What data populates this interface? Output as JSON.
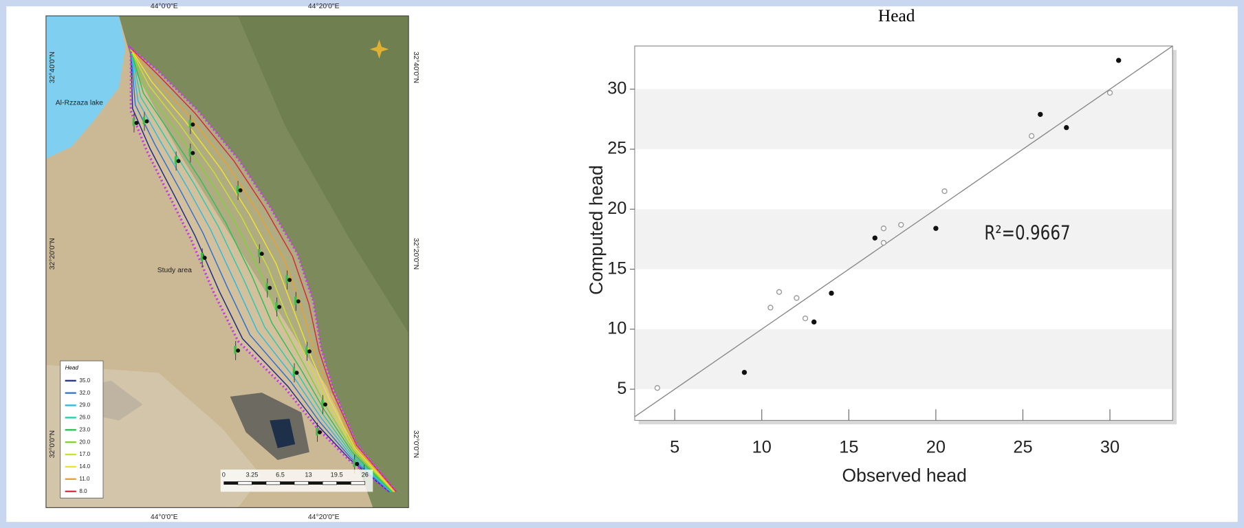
{
  "chart_data": {
    "type": "scatter",
    "title": "Head",
    "x_label": "Observed head",
    "y_label": "Computed head",
    "annotation": "R²=0.9667",
    "series": [
      {
        "color": "#111111",
        "marker": "filled",
        "x": [
          9,
          13,
          14,
          16.5,
          20,
          26,
          27.5,
          30.5
        ],
        "values": [
          6.4,
          10.6,
          13.0,
          17.6,
          18.4,
          27.9,
          26.8,
          32.4
        ]
      },
      {
        "color": "#9a9a9a",
        "marker": "hollow",
        "x": [
          4,
          10.5,
          11,
          12,
          12.5,
          17,
          17,
          18,
          20.5,
          25.5,
          30
        ],
        "values": [
          5.1,
          11.8,
          13.1,
          12.6,
          10.9,
          18.4,
          17.2,
          18.7,
          21.5,
          26.1,
          29.7
        ]
      }
    ],
    "xlim": [
      2.7,
      33.6
    ],
    "ylim": [
      2.4,
      33.6
    ],
    "xticks": [
      5,
      10,
      15,
      20,
      25,
      30
    ],
    "yticks": [
      5,
      10,
      15,
      20,
      25,
      30
    ],
    "grid": true
  },
  "map": {
    "lon_labels": [
      "44°0'0\"E",
      "44°20'0\"E"
    ],
    "lat_labels": [
      "32°40'0\"N",
      "32°20'0\"N",
      "32°0'0\"N"
    ],
    "lake_label": "Al-Rzzaza lake",
    "area_label": "Study area",
    "legend": {
      "title": "Head",
      "items": [
        {
          "label": "35.0",
          "color": "#1f2a8a"
        },
        {
          "label": "32.0",
          "color": "#2f6fd0"
        },
        {
          "label": "29.0",
          "color": "#33b8e0"
        },
        {
          "label": "26.0",
          "color": "#2fc9b0"
        },
        {
          "label": "23.0",
          "color": "#2fbf5a"
        },
        {
          "label": "20.0",
          "color": "#7fd23a"
        },
        {
          "label": "17.0",
          "color": "#c8e032"
        },
        {
          "label": "14.0",
          "color": "#f0e030"
        },
        {
          "label": "11.0",
          "color": "#e8a030"
        },
        {
          "label": "8.0",
          "color": "#d8283a"
        }
      ]
    },
    "scale_labels": [
      "0",
      "3.25",
      "6.5",
      "13",
      "19.5",
      "26"
    ]
  }
}
